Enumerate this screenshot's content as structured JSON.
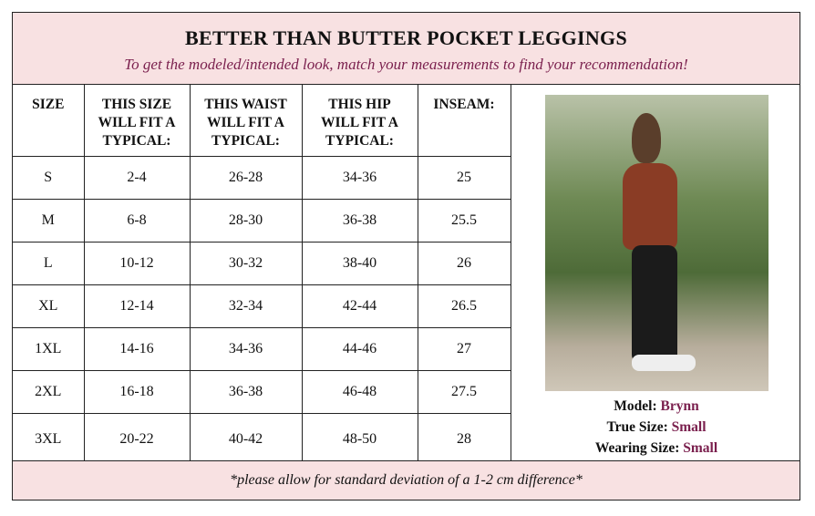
{
  "header": {
    "title": "BETTER THAN BUTTER POCKET LEGGINGS",
    "subtitle": "To get the modeled/intended look, match your measurements to find your recommendation!"
  },
  "table": {
    "columns": [
      "SIZE",
      "THIS SIZE WILL FIT A TYPICAL:",
      "THIS WAIST WILL FIT A TYPICAL:",
      "THIS HIP WILL FIT A TYPICAL:",
      "INSEAM:"
    ],
    "rows": [
      [
        "S",
        "2-4",
        "26-28",
        "34-36",
        "25"
      ],
      [
        "M",
        "6-8",
        "28-30",
        "36-38",
        "25.5"
      ],
      [
        "L",
        "10-12",
        "30-32",
        "38-40",
        "26"
      ],
      [
        "XL",
        "12-14",
        "32-34",
        "42-44",
        "26.5"
      ],
      [
        "1XL",
        "14-16",
        "34-36",
        "44-46",
        "27"
      ],
      [
        "2XL",
        "16-18",
        "36-38",
        "46-48",
        "27.5"
      ],
      [
        "3XL",
        "20-22",
        "40-42",
        "48-50",
        "28"
      ]
    ]
  },
  "model": {
    "model_label": "Model:",
    "model_value": "Brynn",
    "true_label": "True Size:",
    "true_value": "Small",
    "wearing_label": "Wearing Size:",
    "wearing_value": "Small"
  },
  "footer": {
    "note": "*please allow for standard deviation of a 1-2 cm difference*"
  },
  "colors": {
    "pink_bg": "#f8e1e2",
    "accent": "#7a1f4d"
  }
}
